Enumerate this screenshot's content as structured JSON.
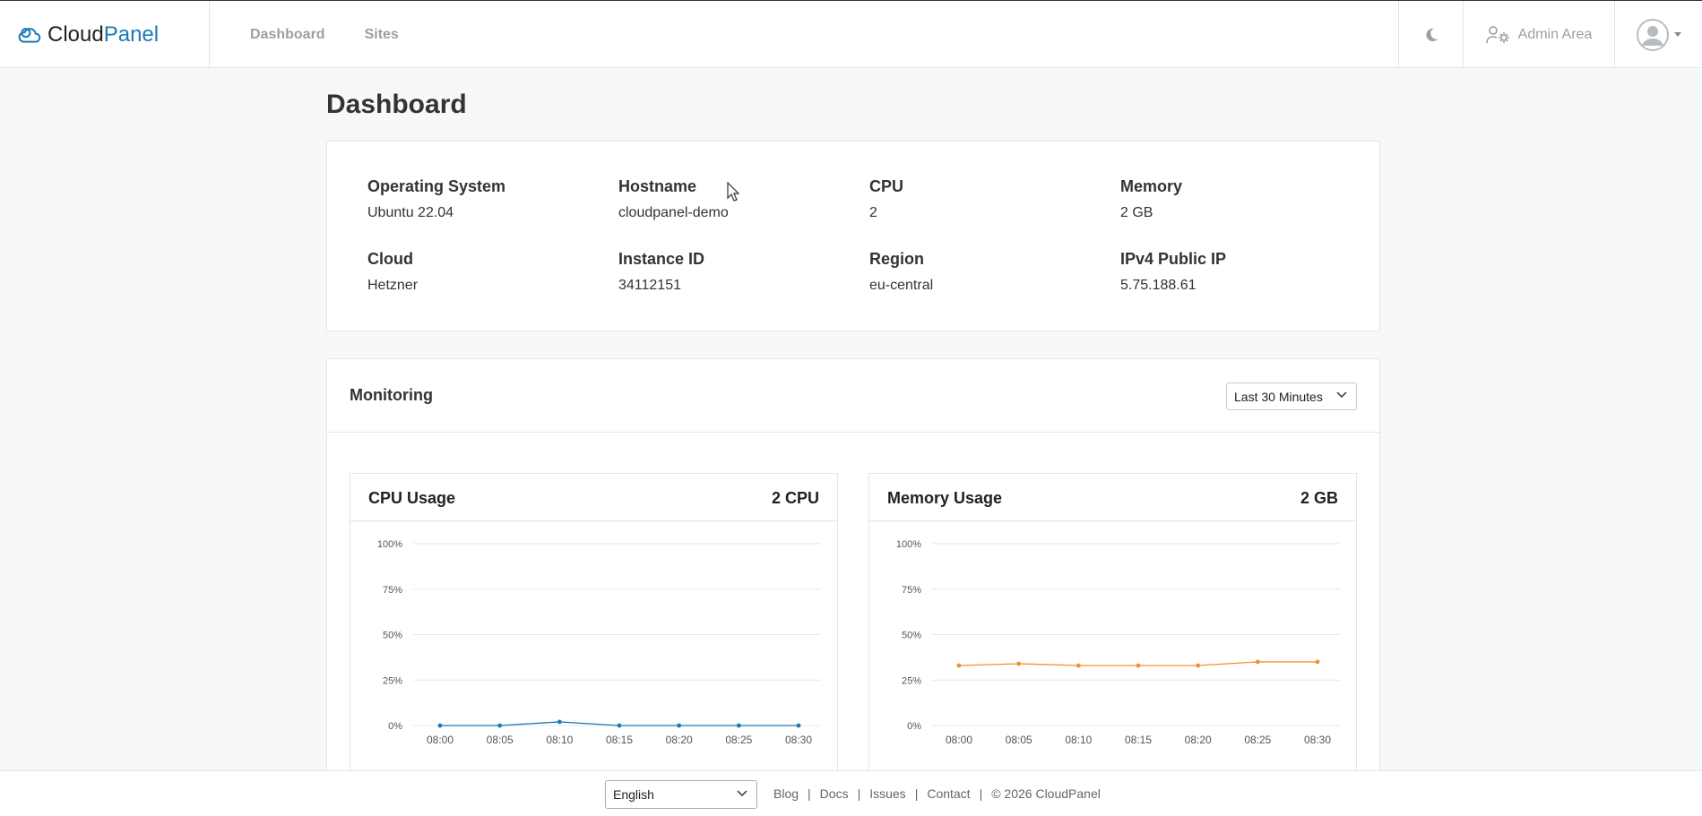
{
  "header": {
    "brand_part1": "Cloud",
    "brand_part2": "Panel",
    "nav": [
      {
        "label": "Dashboard"
      },
      {
        "label": "Sites"
      }
    ],
    "admin_label": "Admin Area",
    "icons": {
      "theme": "moon-icon",
      "admin": "users-cog-icon",
      "user": "avatar"
    }
  },
  "page": {
    "title": "Dashboard"
  },
  "server_info": [
    {
      "label": "Operating System",
      "value": "Ubuntu 22.04"
    },
    {
      "label": "Hostname",
      "value": "cloudpanel-demo"
    },
    {
      "label": "CPU",
      "value": "2"
    },
    {
      "label": "Memory",
      "value": "2 GB"
    },
    {
      "label": "Cloud",
      "value": "Hetzner"
    },
    {
      "label": "Instance ID",
      "value": "34112151"
    },
    {
      "label": "Region",
      "value": "eu-central"
    },
    {
      "label": "IPv4 Public IP",
      "value": "5.75.188.61"
    }
  ],
  "monitoring": {
    "title": "Monitoring",
    "range_selected": "Last 30 Minutes"
  },
  "chart_data": [
    {
      "type": "line",
      "title": "CPU Usage",
      "badge": "2 CPU",
      "x": [
        "08:00",
        "08:05",
        "08:10",
        "08:15",
        "08:20",
        "08:25",
        "08:30"
      ],
      "y_ticks": [
        "100%",
        "75%",
        "50%",
        "25%",
        "0%"
      ],
      "ylim": [
        0,
        100
      ],
      "series": [
        {
          "values": [
            0,
            0,
            2,
            0,
            0,
            0,
            0
          ],
          "color": "#1a7ab8"
        }
      ],
      "grid": true
    },
    {
      "type": "line",
      "title": "Memory Usage",
      "badge": "2 GB",
      "x": [
        "08:00",
        "08:05",
        "08:10",
        "08:15",
        "08:20",
        "08:25",
        "08:30"
      ],
      "y_ticks": [
        "100%",
        "75%",
        "50%",
        "25%",
        "0%"
      ],
      "ylim": [
        0,
        100
      ],
      "series": [
        {
          "values": [
            33,
            34,
            33,
            33,
            33,
            35,
            35
          ],
          "color": "#f0932b"
        }
      ],
      "grid": true
    }
  ],
  "footer": {
    "language": "English",
    "links": [
      "Blog",
      "Docs",
      "Issues",
      "Contact"
    ],
    "copyright": "© 2026  CloudPanel"
  }
}
